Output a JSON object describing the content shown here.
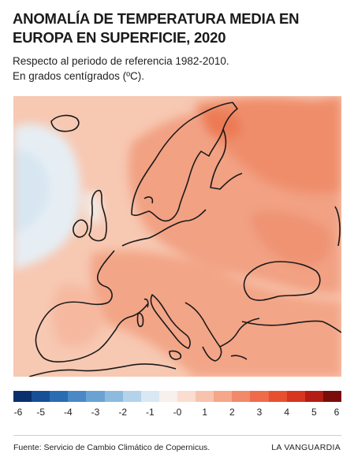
{
  "title": "ANOMALÍA DE TEMPERATURA MEDIA EN EUROPA EN SUPERFICIE, 2020",
  "subtitle_line1": "Respecto al periodo de referencia 1982-2010.",
  "subtitle_line2": "En grados centígrados (ºC).",
  "legend": {
    "colors": [
      "#0b2f6b",
      "#174f96",
      "#2a6cb2",
      "#4a88c6",
      "#6aa3d3",
      "#8dbbdf",
      "#b3d3ea",
      "#d9e8f3",
      "#f7f0ec",
      "#fbdcd0",
      "#f8c3ad",
      "#f5a78a",
      "#f2896a",
      "#ee6b4b",
      "#e84f31",
      "#d6351f",
      "#b31d14",
      "#7a0c0c"
    ],
    "ticks": [
      "-6",
      "-5",
      "-4",
      "-3",
      "-2",
      "-1",
      "-0",
      "1",
      "2",
      "3",
      "4",
      "5",
      "6"
    ],
    "tick_values": [
      -6,
      -5,
      -4,
      -3,
      -2,
      -1,
      0,
      1,
      2,
      3,
      4,
      5,
      6
    ],
    "range": [
      -6,
      6
    ]
  },
  "map": {
    "region": "Europa",
    "ocean_color": "#f7cdb9",
    "land_color": "#f4a98b",
    "hot_color": "#f08a62",
    "cool_color": "#dce9f3",
    "coastline_color": "#1a1a1a"
  },
  "source": "Fuente: Servicio de Cambio Climático de Copernicus.",
  "brand": "LA VANGUARDIA"
}
